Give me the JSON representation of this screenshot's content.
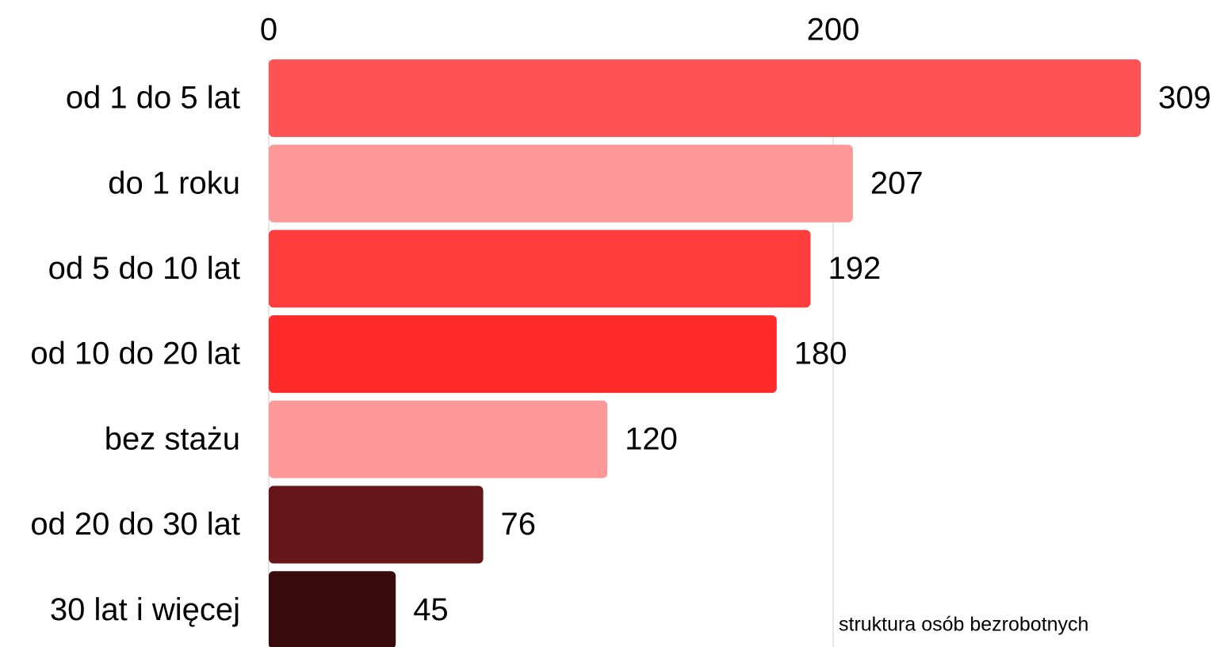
{
  "chart_data": {
    "type": "barh",
    "categories": [
      "od 1 do 5 lat",
      "do 1 roku",
      "od 5 do 10 lat",
      "od 10 do 20 lat",
      "bez stażu",
      "od 20 do 30 lat",
      "30 lat i więcej"
    ],
    "values": [
      309,
      207,
      192,
      180,
      120,
      76,
      45
    ],
    "colors": [
      "#ff5252",
      "#ff9999",
      "#ff3d3d",
      "#ff2a2a",
      "#ff9999",
      "#661619",
      "#380c0c"
    ],
    "xlim": [
      0,
      300
    ],
    "xticks": [
      0,
      200
    ],
    "grid": true,
    "annotation": "struktura osób bezrobotnych"
  }
}
